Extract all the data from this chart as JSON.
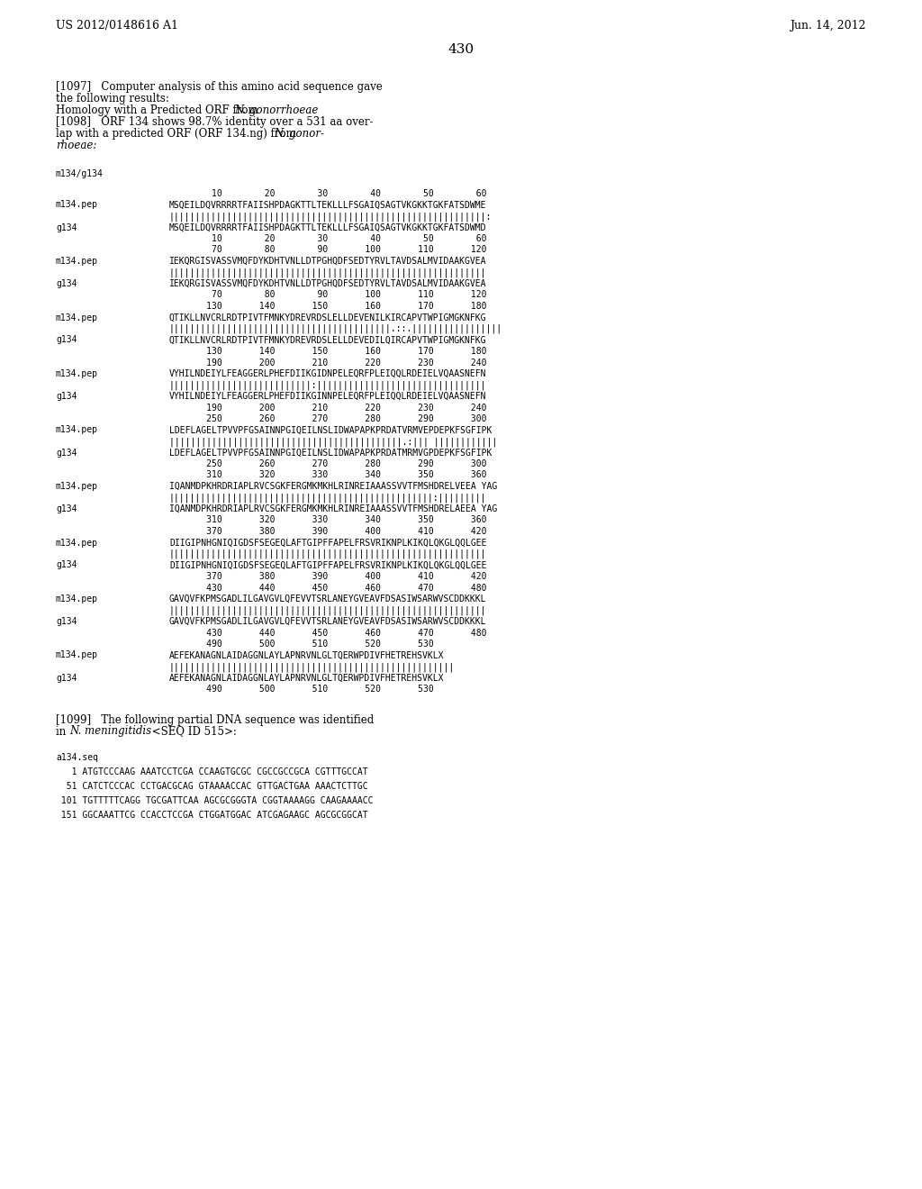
{
  "header_left": "US 2012/0148616 A1",
  "header_right": "Jun. 14, 2012",
  "page_number": "430",
  "background_color": "#ffffff",
  "text_color": "#000000",
  "alignment_label": "m134/g134",
  "alignment_blocks": [
    {
      "num_top": "        10        20        30        40        50        60",
      "pep_label": "m134.pep",
      "pep_seq": "MSQEILDQVRRRRTFAIISHPDAGKTTLTEKLLLFSGAIQSAGTVKGKKTGKFATSDWME",
      "match_line": "||||||||||||||||||||||||||||||||||||||||||||||||||||||||||||:",
      "g134_label": "g134",
      "g134_seq": "MSQEILDQVRRRRTFAIISHPDAGKTTLTEKLLLFSGAIQSAGTVKGKKTGKFATSDWMD",
      "num_bot": "        10        20        30        40        50        60",
      "num_top2": "        70        80        90       100       110       120"
    },
    {
      "num_top": "",
      "pep_label": "m134.pep",
      "pep_seq": "IEKQRGISVASSVMQFDYKDHTVNLLDTPGHQDFSEDTYRVLTAVDSALMVIDAAKGVEA",
      "match_line": "||||||||||||||||||||||||||||||||||||||||||||||||||||||||||||",
      "g134_label": "g134",
      "g134_seq": "IEKQRGISVASSVMQFDYKDHTVNLLDTPGHQDFSEDTYRVLTAVDSALMVIDAAKGVEA",
      "num_bot": "        70        80        90       100       110       120",
      "num_top2": "       130       140       150       160       170       180"
    },
    {
      "num_top": "",
      "pep_label": "m134.pep",
      "pep_seq": "QTIKLLNVCRLRDTPIVTFMNKYDREVRDSLELLDEVENILKIRCAPVTWPIGMGKNFKG",
      "match_line": "||||||||||||||||||||||||||||||||||||||||||.::.|||||||||||||||||",
      "g134_label": "g134",
      "g134_seq": "QTIKLLNVCRLRDTPIVTFMNKYDREVRDSLELLDEVEDILQIRCAPVTWPIGMGKNFKG",
      "num_bot": "       130       140       150       160       170       180",
      "num_top2": "       190       200       210       220       230       240"
    },
    {
      "num_top": "",
      "pep_label": "m134.pep",
      "pep_seq": "VYHILNDEIYLFEAGGERLPHEFDIIKGIDNPELEQRFPLEIQQLRDEIELVQAASNEFN",
      "match_line": "|||||||||||||||||||||||||||:||||||||||||||||||||||||||||||||",
      "g134_label": "g134",
      "g134_seq": "VYHILNDEIYLFEAGGERLPHEFDIIKGINNPELEQRFPLEIQQLRDEIELVQAASNEFN",
      "num_bot": "       190       200       210       220       230       240",
      "num_top2": "       250       260       270       280       290       300"
    },
    {
      "num_top": "",
      "pep_label": "m134.pep",
      "pep_seq": "LDEFLAGELTPVVPFGSAINNPGIQEILNSLIDWAPAPKPRDATVRMVEPDEPKFSGFIPK",
      "match_line": "||||||||||||||||||||||||||||||||||||||||||||.:||| ||||||||||||",
      "g134_label": "g134",
      "g134_seq": "LDEFLAGELTPVVPFGSAINNPGIQEILNSLIDWAPAPKPRDATMRMVGPDEPKFSGFIPK",
      "num_bot": "       250       260       270       280       290       300",
      "num_top2": "       310       320       330       340       350       360"
    },
    {
      "num_top": "",
      "pep_label": "m134.pep",
      "pep_seq": "IQANMDPKHRDRIAPLRVCSGKFERGMKMKHLRINREIAAASSVVTFMSHDRELVEEA YAG",
      "match_line": "||||||||||||||||||||||||||||||||||||||||||||||||||:|||||||||",
      "g134_label": "g134",
      "g134_seq": "IQANMDPKHRDRIAPLRVCSGKFERGMKMKHLRINREIAAASSVVTFMSHDRELAEEA YAG",
      "num_bot": "       310       320       330       340       350       360",
      "num_top2": "       370       380       390       400       410       420"
    },
    {
      "num_top": "",
      "pep_label": "m134.pep",
      "pep_seq": "DIIGIPNHGNIQIGDSFSEGEQLAFTGIPFFAPELFRSVRIKNPLKIKQLQKGLQQLGEE",
      "match_line": "||||||||||||||||||||||||||||||||||||||||||||||||||||||||||||",
      "g134_label": "g134",
      "g134_seq": "DIIGIPNHGNIQIGDSFSEGEQLAFTGIPFFAPELFRSVRIKNPLKIKQLQKGLQQLGEE",
      "num_bot": "       370       380       390       400       410       420",
      "num_top2": "       430       440       450       460       470       480"
    },
    {
      "num_top": "",
      "pep_label": "m134.pep",
      "pep_seq": "GAVQVFKPMSGADLILGAVGVLQFEVVTSRLANEYGVEAVFDSASIWSARWVSCDDKKKL",
      "match_line": "||||||||||||||||||||||||||||||||||||||||||||||||||||||||||||",
      "g134_label": "g134",
      "g134_seq": "GAVQVFKPMSGADLILGAVGVLQFEVVTSRLANEYGVEAVFDSASIWSARWVSCDDKKKL",
      "num_bot": "       430       440       450       460       470       480",
      "num_top2": "       490       500       510       520       530"
    },
    {
      "num_top": "",
      "pep_label": "m134.pep",
      "pep_seq": "AEFEKANAGNLAIDAGGNLAYLAPNRVNLGLTQERWPDIVFHETREHSVKLX",
      "match_line": "||||||||||||||||||||||||||||||||||||||||||||||||||||||",
      "g134_label": "g134",
      "g134_seq": "AEFEKANAGNLAIDAGGNLAYLAPNRVNLGLTQERWPDIVFHETREHSVKLX",
      "num_bot": "       490       500       510       520       530",
      "num_top2": ""
    }
  ],
  "dna_label": "a134.seq",
  "dna_lines": [
    "   1 ATGTCCCAAG AAATCCTCGA CCAAGTGCGC CGCCGCCGCA CGTTTGCCAT",
    "  51 CATCTCCCAC CCTGACGCAG GTAAAACCAC GTTGACTGAA AAACTCTTGC",
    " 101 TGTTTTTCAGG TGCGATTCAA AGCGCGGGTA CGGTAAAAGG CAAGAAAACC",
    " 151 GGCAAATTCG CCACCTCCGA CTGGATGGAC ATCGAGAAGC AGCGCGGCAT"
  ]
}
